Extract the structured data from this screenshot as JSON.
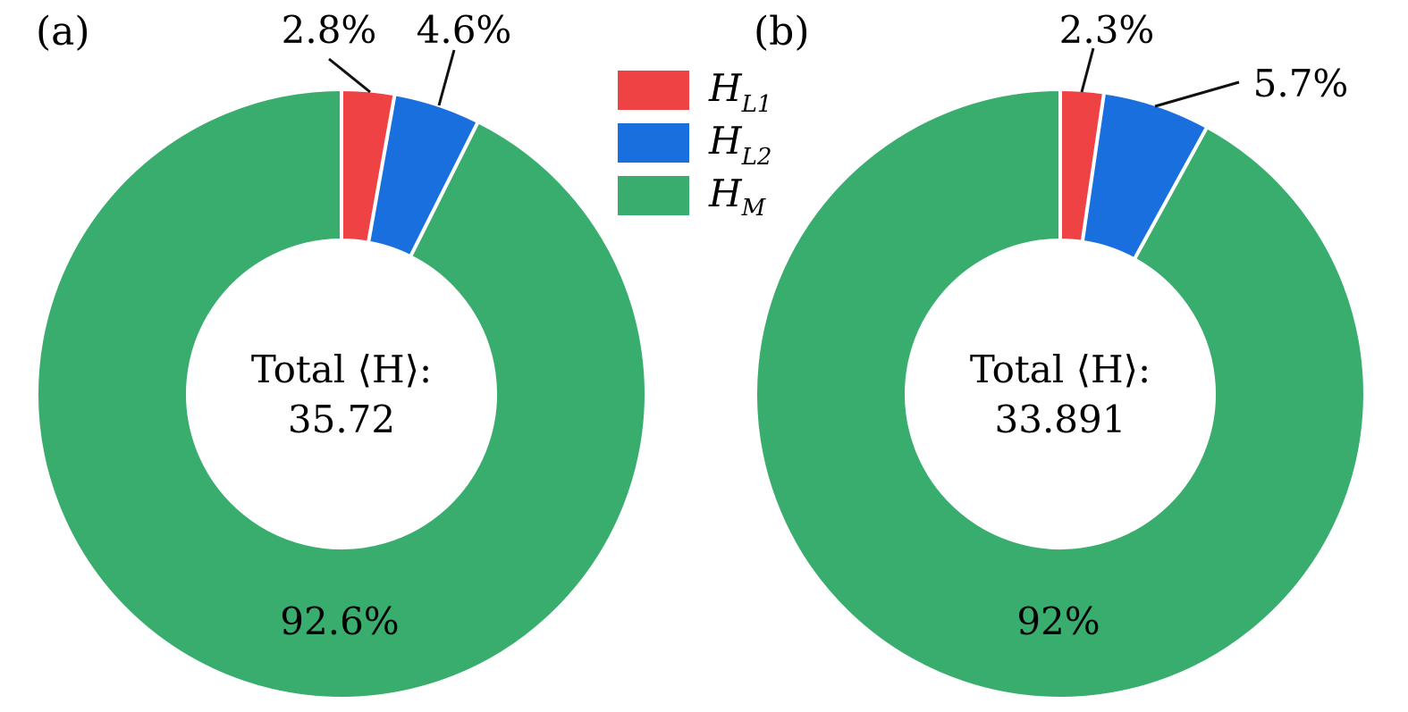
{
  "colors": {
    "H_L1": "#ef4245",
    "H_L2": "#1a6fde",
    "H_M": "#39ad6d",
    "edge": "#ffffff",
    "leader": "#111111"
  },
  "legend": {
    "entries": [
      {
        "key": "H_L1",
        "base": "H",
        "sub": "L1"
      },
      {
        "key": "H_L2",
        "base": "H",
        "sub": "L2"
      },
      {
        "key": "H_M",
        "base": "H",
        "sub": "M"
      }
    ]
  },
  "chart_data": [
    {
      "type": "pie",
      "panel_label": "(a)",
      "donut": true,
      "slices": [
        {
          "key": "H_L1",
          "value": 2.8,
          "label": "2.8%"
        },
        {
          "key": "H_L2",
          "value": 4.6,
          "label": "4.6%"
        },
        {
          "key": "H_M",
          "value": 92.6,
          "label": "92.6%"
        }
      ],
      "center_line1": "Total ⟨H⟩:",
      "center_line2": "35.72"
    },
    {
      "type": "pie",
      "panel_label": "(b)",
      "donut": true,
      "slices": [
        {
          "key": "H_L1",
          "value": 2.3,
          "label": "2.3%"
        },
        {
          "key": "H_L2",
          "value": 5.7,
          "label": "5.7%"
        },
        {
          "key": "H_M",
          "value": 92.0,
          "label": "92%"
        }
      ],
      "center_line1": "Total ⟨H⟩:",
      "center_line2": "33.891"
    }
  ]
}
